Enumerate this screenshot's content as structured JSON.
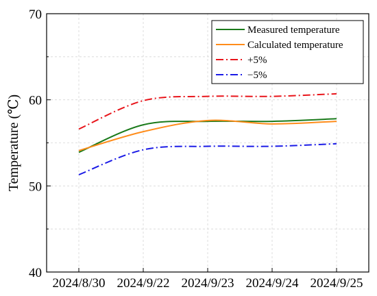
{
  "chart_data": {
    "type": "line",
    "title": "",
    "xlabel": "",
    "ylabel": "Temperature (℃)",
    "categories": [
      "2024/8/30",
      "2024/9/22",
      "2024/9/23",
      "2024/9/24",
      "2024/9/25"
    ],
    "yticks": [
      "40",
      "50",
      "60",
      "70"
    ],
    "ylim": [
      40,
      70
    ],
    "grid": true,
    "legend_position": "top-right",
    "series": [
      {
        "name": "Measured temperature",
        "values": [
          53.9,
          57.1,
          57.5,
          57.5,
          57.8
        ],
        "color": "#1a7a1a",
        "dash": "solid"
      },
      {
        "name": "Calculated temperature",
        "values": [
          54.1,
          56.3,
          57.6,
          57.2,
          57.5
        ],
        "color": "#ff8c1a",
        "dash": "solid"
      },
      {
        "name": "+5%",
        "values": [
          56.6,
          59.9,
          60.4,
          60.4,
          60.7
        ],
        "color": "#e8141a",
        "dash": "dashdot"
      },
      {
        "name": "−5%",
        "values": [
          51.3,
          54.2,
          54.6,
          54.6,
          54.9
        ],
        "color": "#1a1ae6",
        "dash": "dashdot"
      }
    ]
  }
}
